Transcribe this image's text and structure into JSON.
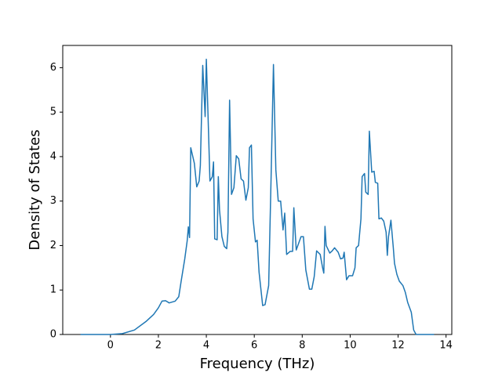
{
  "chart_data": {
    "type": "line",
    "x_label": "Frequency (THz)",
    "y_label": "Density of States",
    "xlim": [
      -1.99,
      14.24
    ],
    "ylim": [
      0,
      6.5
    ],
    "xticks": [
      0,
      2,
      4,
      6,
      8,
      10,
      12,
      14
    ],
    "yticks": [
      0,
      1,
      2,
      3,
      4,
      5,
      6
    ],
    "grid": false,
    "color": "#1f77b4",
    "x": [
      -1.25,
      0,
      0.5,
      1.0,
      1.5,
      1.8,
      2.0,
      2.15,
      2.3,
      2.45,
      2.7,
      2.85,
      2.95,
      3.1,
      3.2,
      3.25,
      3.3,
      3.35,
      3.5,
      3.6,
      3.7,
      3.75,
      3.85,
      3.95,
      4.0,
      4.1,
      4.15,
      4.25,
      4.3,
      4.35,
      4.45,
      4.5,
      4.55,
      4.65,
      4.75,
      4.85,
      4.9,
      4.97,
      5.05,
      5.15,
      5.25,
      5.35,
      5.45,
      5.55,
      5.65,
      5.75,
      5.8,
      5.88,
      5.95,
      6.05,
      6.12,
      6.2,
      6.35,
      6.45,
      6.6,
      6.7,
      6.8,
      6.9,
      7.0,
      7.1,
      7.2,
      7.27,
      7.35,
      7.5,
      7.6,
      7.65,
      7.75,
      7.85,
      7.95,
      8.05,
      8.15,
      8.3,
      8.4,
      8.5,
      8.6,
      8.75,
      8.85,
      8.9,
      8.95,
      9.0,
      9.15,
      9.25,
      9.35,
      9.5,
      9.6,
      9.7,
      9.75,
      9.85,
      9.95,
      10.1,
      10.2,
      10.25,
      10.35,
      10.45,
      10.5,
      10.6,
      10.65,
      10.75,
      10.8,
      10.9,
      11.0,
      11.05,
      11.15,
      11.2,
      11.3,
      11.4,
      11.5,
      11.55,
      11.6,
      11.7,
      11.8,
      11.85,
      11.95,
      12.05,
      12.2,
      12.3,
      12.4,
      12.55,
      12.65,
      12.75,
      13.5
    ],
    "values": [
      0,
      0,
      0.02,
      0.1,
      0.3,
      0.45,
      0.6,
      0.75,
      0.76,
      0.71,
      0.75,
      0.85,
      1.2,
      1.7,
      2.1,
      2.42,
      2.18,
      4.2,
      3.85,
      3.32,
      3.45,
      3.8,
      6.05,
      4.9,
      6.19,
      4.4,
      3.45,
      3.55,
      3.88,
      2.15,
      2.13,
      3.55,
      2.8,
      2.2,
      1.98,
      1.93,
      2.3,
      5.27,
      3.15,
      3.3,
      4.02,
      3.95,
      3.5,
      3.45,
      3.02,
      3.3,
      4.2,
      4.26,
      2.6,
      2.08,
      2.12,
      1.4,
      0.65,
      0.67,
      1.1,
      3.5,
      6.07,
      3.7,
      3.0,
      3.0,
      2.35,
      2.73,
      1.8,
      1.87,
      1.87,
      2.85,
      1.9,
      2.05,
      2.2,
      2.2,
      1.45,
      1.02,
      1.02,
      1.3,
      1.88,
      1.8,
      1.5,
      1.38,
      2.43,
      2.0,
      1.83,
      1.88,
      1.95,
      1.85,
      1.7,
      1.72,
      1.85,
      1.23,
      1.32,
      1.32,
      1.5,
      1.95,
      2.0,
      2.6,
      3.55,
      3.62,
      3.2,
      3.15,
      4.57,
      3.65,
      3.67,
      3.42,
      3.4,
      2.6,
      2.62,
      2.55,
      2.3,
      1.78,
      2.2,
      2.57,
      1.95,
      1.6,
      1.35,
      1.2,
      1.1,
      0.95,
      0.72,
      0.5,
      0.1,
      0,
      0
    ]
  }
}
